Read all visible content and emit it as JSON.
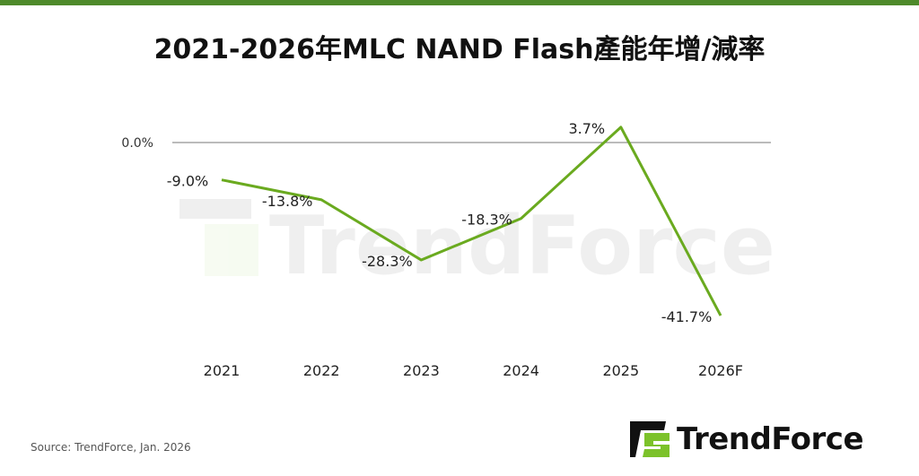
{
  "title": "2021-2026年MLC NAND Flash產能年增/減率",
  "source": "Source: TrendForce, Jan. 2026",
  "logo_text": "TrendForce",
  "watermark_text": "TrendForce",
  "colors": {
    "line": "#6aaa1f",
    "top_bar": "#4e8a2b",
    "logo_green": "#7cc22a"
  },
  "chart_data": {
    "type": "line",
    "title": "2021-2026年MLC NAND Flash產能年增/減率",
    "categories": [
      "2021",
      "2022",
      "2023",
      "2024",
      "2025",
      "2026F"
    ],
    "series": [
      {
        "values": [
          -9.0,
          -13.8,
          -28.3,
          -18.3,
          3.7,
          -41.7
        ]
      }
    ],
    "data_labels": [
      "-9.0%",
      "-13.8%",
      "-28.3%",
      "-18.3%",
      "3.7%",
      "-41.7%"
    ],
    "y_tick_labels": [
      "0.0%"
    ],
    "y_ticks": [
      0
    ],
    "ylim": [
      -45,
      5
    ],
    "grid": false,
    "legend": "none"
  }
}
